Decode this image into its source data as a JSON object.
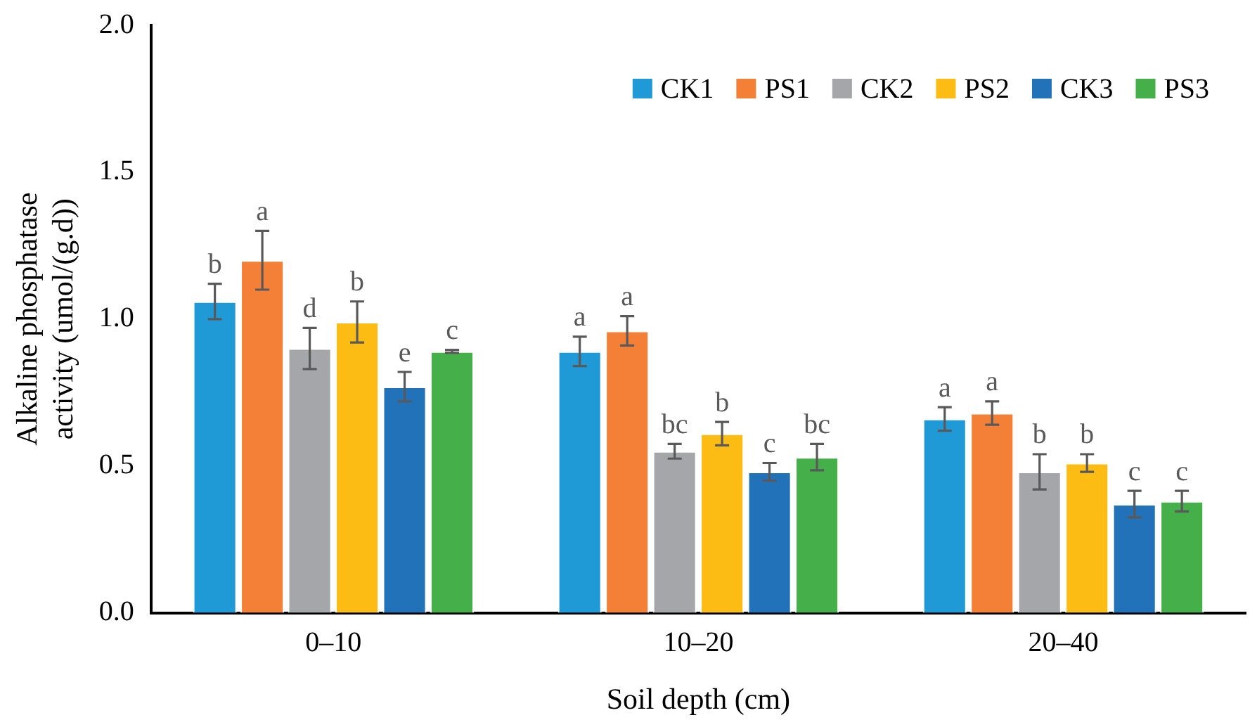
{
  "chart_data": {
    "type": "bar",
    "xlabel": "Soil depth (cm)",
    "ylabel": "Alkaline phosphatase activity (umol/(g.d))",
    "categories": [
      "0–10",
      "10–20",
      "20–40"
    ],
    "ylim": [
      0,
      2
    ],
    "yticks": [
      {
        "value": 0,
        "label": "0.0"
      },
      {
        "value": 0.5,
        "label": "0.5"
      },
      {
        "value": 1,
        "label": "1.0"
      },
      {
        "value": 1.5,
        "label": "1.5"
      },
      {
        "value": 2,
        "label": "2.0"
      }
    ],
    "grid": false,
    "legend": "top right",
    "series": [
      {
        "name": "CK1",
        "color": "#1f9ad6",
        "values": [
          1.06,
          0.89,
          0.66
        ],
        "errors": [
          0.06,
          0.05,
          0.04
        ],
        "value_labels": [
          "b",
          "a",
          "a"
        ]
      },
      {
        "name": "PS1",
        "color": "#f47f36",
        "values": [
          1.2,
          0.96,
          0.68
        ],
        "errors": [
          0.1,
          0.05,
          0.04
        ],
        "value_labels": [
          "a",
          "a",
          "a"
        ]
      },
      {
        "name": "CK2",
        "color": "#a5a6a9",
        "values": [
          0.9,
          0.55,
          0.48
        ],
        "errors": [
          0.07,
          0.025,
          0.06
        ],
        "value_labels": [
          "d",
          "bc",
          "b"
        ]
      },
      {
        "name": "PS2",
        "color": "#fcbc13",
        "values": [
          0.99,
          0.61,
          0.51
        ],
        "errors": [
          0.07,
          0.04,
          0.03
        ],
        "value_labels": [
          "b",
          "b",
          "b"
        ]
      },
      {
        "name": "CK3",
        "color": "#2172b8",
        "values": [
          0.77,
          0.48,
          0.37
        ],
        "errors": [
          0.05,
          0.03,
          0.045
        ],
        "value_labels": [
          "e",
          "c",
          "c"
        ]
      },
      {
        "name": "PS3",
        "color": "#45b04a",
        "values": [
          0.89,
          0.53,
          0.38
        ],
        "errors": [
          0.005,
          0.045,
          0.035
        ],
        "value_labels": [
          "c",
          "bc",
          "c"
        ]
      }
    ]
  }
}
